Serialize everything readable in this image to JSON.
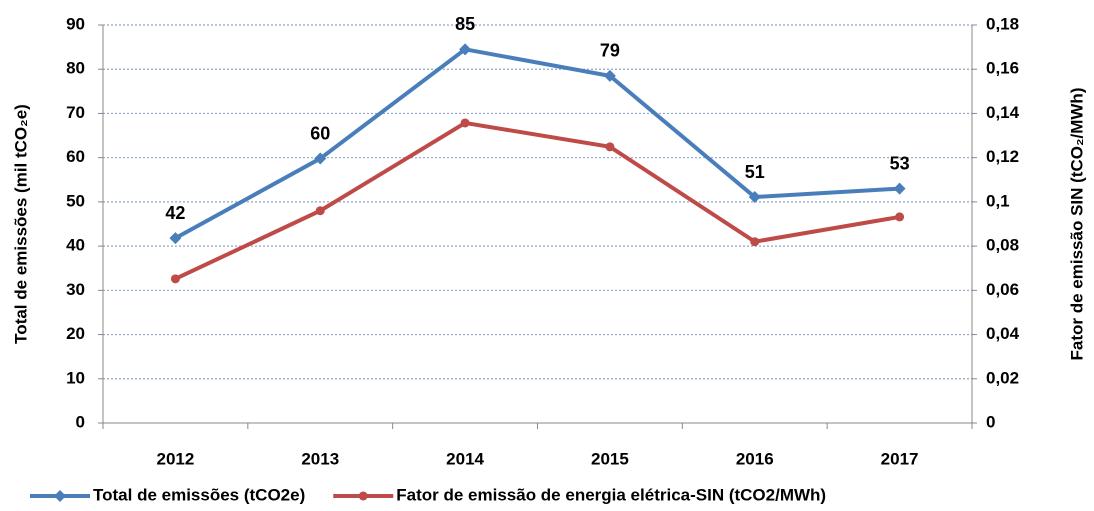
{
  "chart_data": {
    "type": "line",
    "categories": [
      "2012",
      "2013",
      "2014",
      "2015",
      "2016",
      "2017"
    ],
    "y_label": "Total de emissões (mil tCO₂e)",
    "y2_label": "Fator de emissão SIN (tCO₂/MWh)",
    "ylim": [
      0,
      90
    ],
    "yticks": [
      0,
      10,
      20,
      30,
      40,
      50,
      60,
      70,
      80,
      90
    ],
    "y2lim": [
      0,
      0.18
    ],
    "y2ticks": [
      0,
      {
        "value": 0.02,
        "label": "0,02"
      },
      {
        "value": 0.04,
        "label": "0,04"
      },
      {
        "value": 0.06,
        "label": "0,06"
      },
      {
        "value": 0.08,
        "label": "0,08"
      },
      {
        "value": 0.1,
        "label": "0,1"
      },
      {
        "value": 0.12,
        "label": "0,12"
      },
      {
        "value": 0.14,
        "label": "0,14"
      },
      {
        "value": 0.16,
        "label": "0,16"
      },
      {
        "value": 0.18,
        "label": "0,18"
      }
    ],
    "grid": true,
    "legend": "bottom",
    "series": [
      {
        "name": "Total de emissões (tCO2e)",
        "color": "#4a7ebb",
        "marker": "diamond",
        "values": [
          41.8,
          59.8,
          84.5,
          78.5,
          51.1,
          53.0
        ],
        "value_labels": [
          "42",
          "60",
          "85",
          "79",
          "51",
          "53"
        ]
      },
      {
        "name": "Fator de emissão de energia elétrica-SIN (tCO2/MWh)",
        "color": "#be4b48",
        "marker": "circle",
        "axis": "y2",
        "values": [
          0.0652,
          0.096,
          0.1357,
          0.1249,
          0.082,
          0.0932
        ]
      }
    ]
  }
}
